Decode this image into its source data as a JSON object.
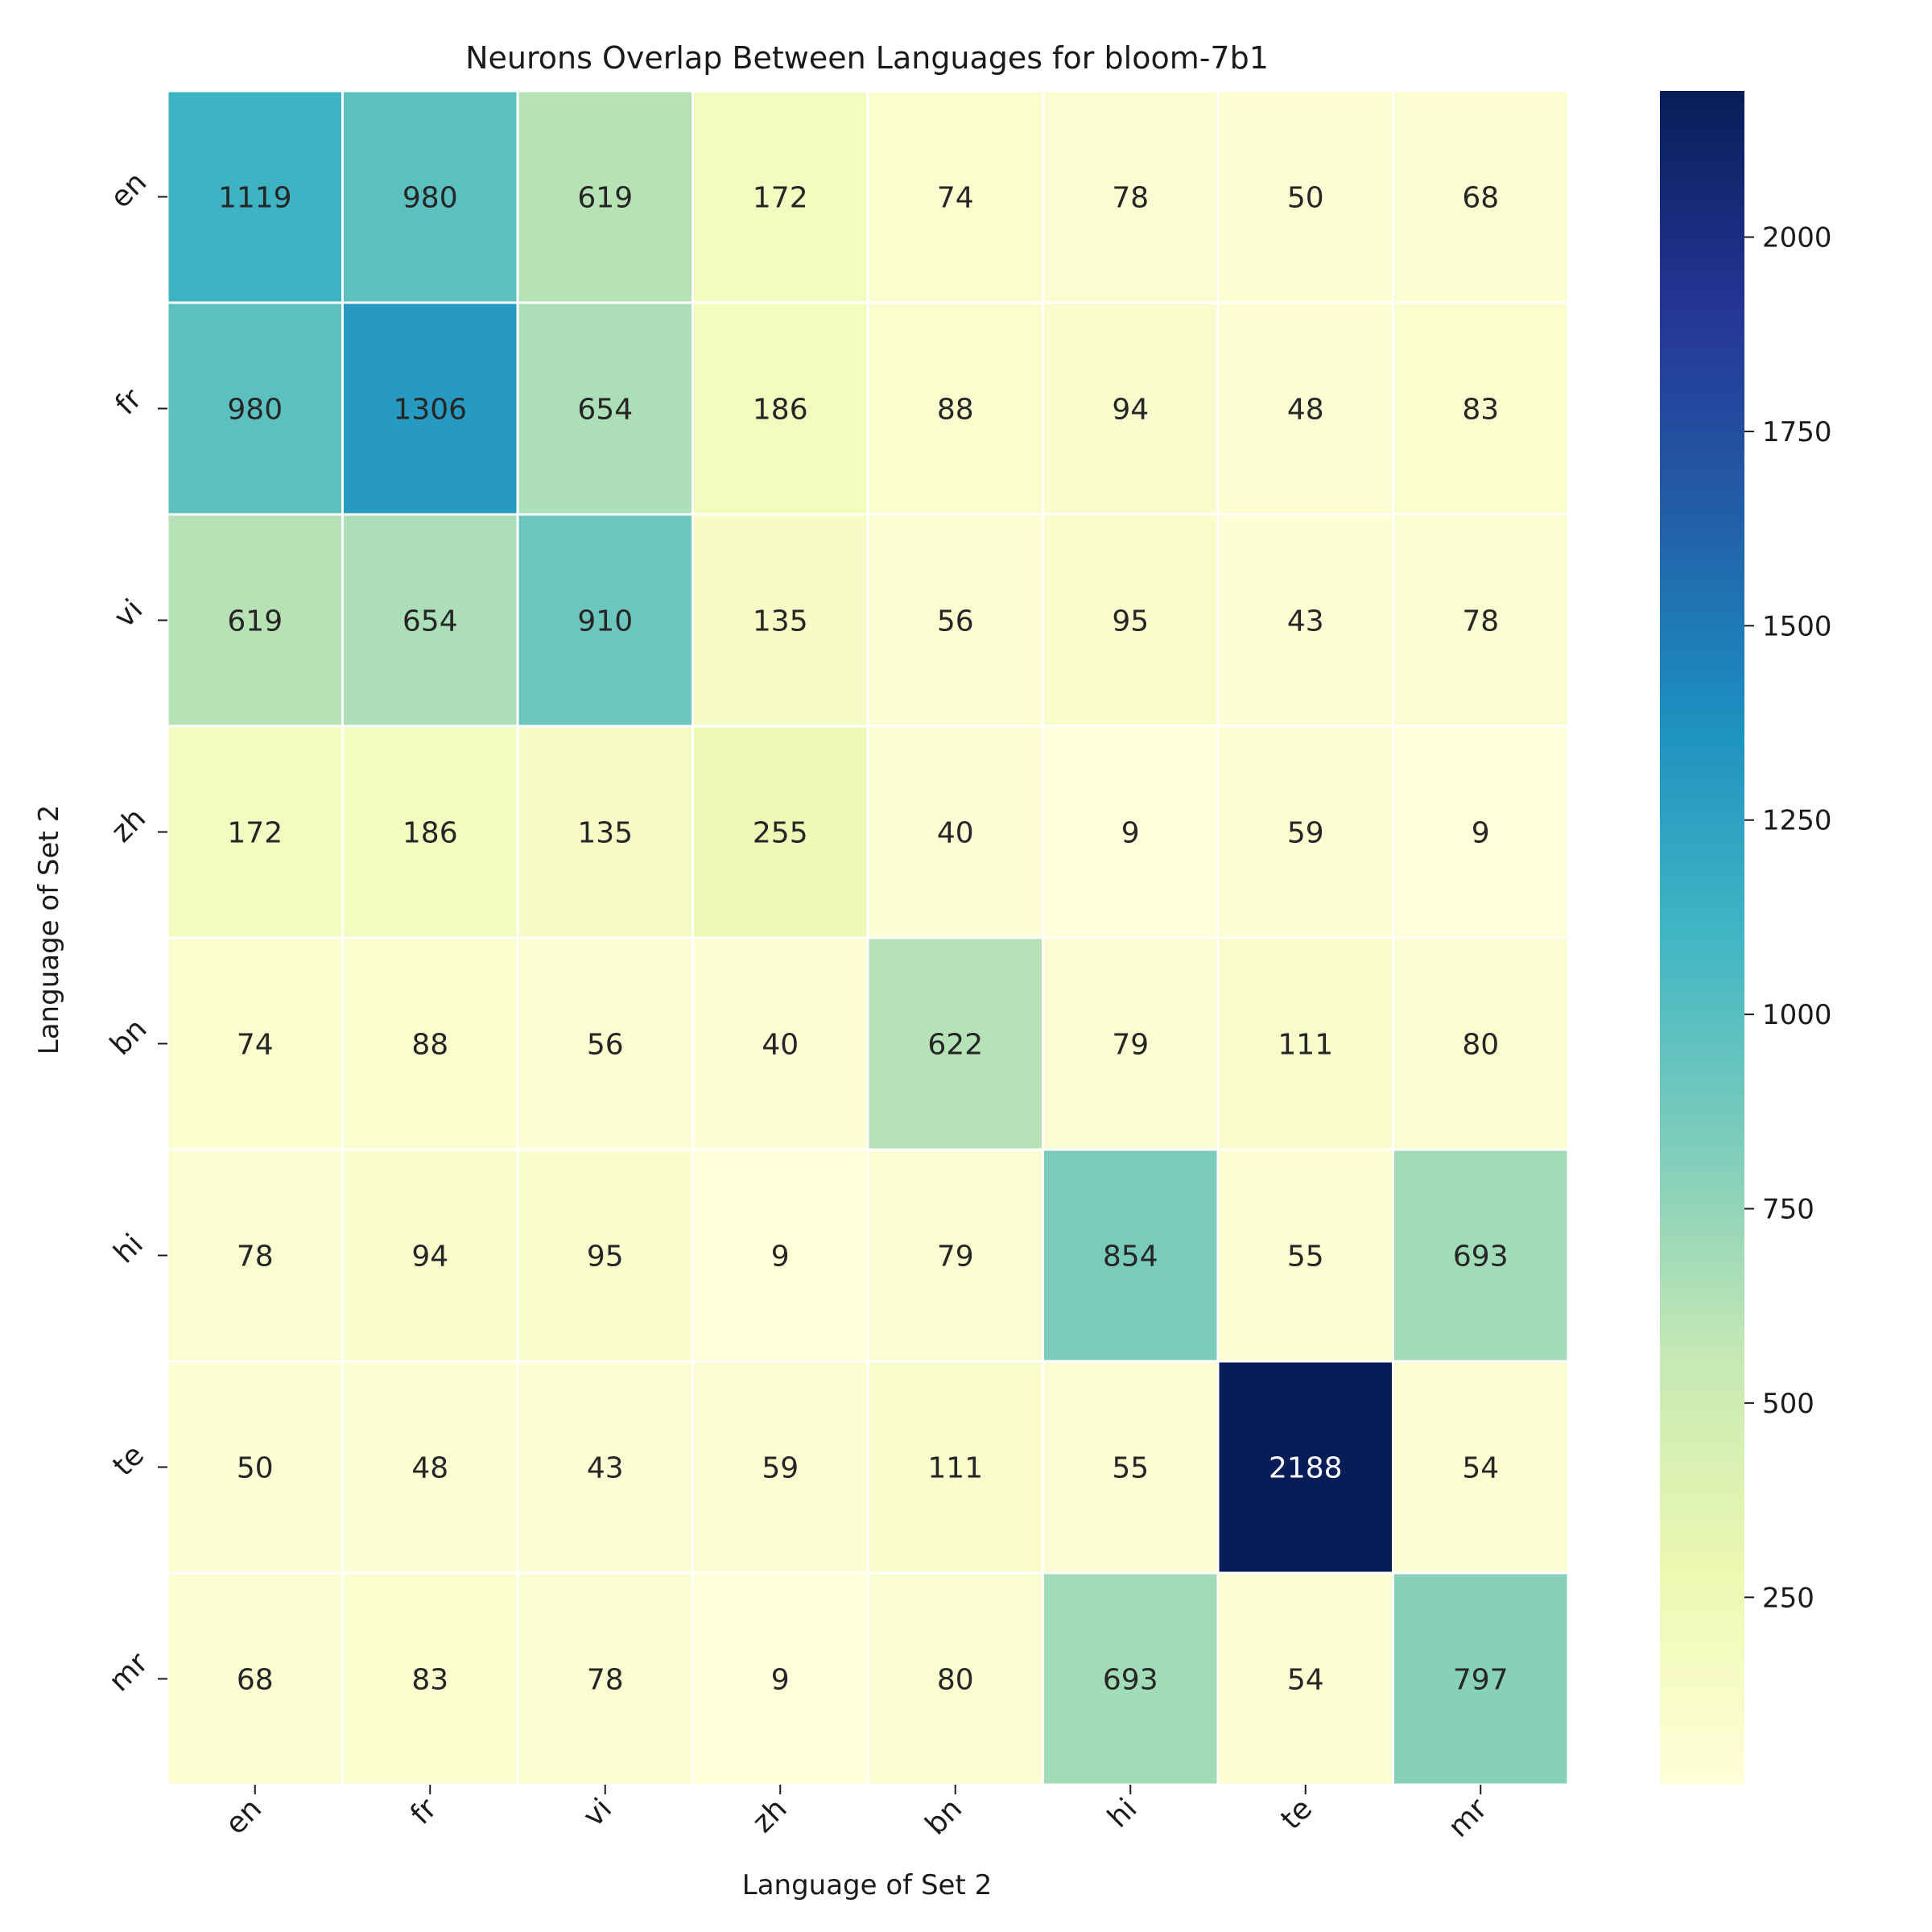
{
  "chart_data": {
    "type": "heatmap",
    "title": "Neurons Overlap Between Languages for bloom-7b1",
    "xlabel": "Language of Set 2",
    "ylabel": "Language of Set 2",
    "x_categories": [
      "en",
      "fr",
      "vi",
      "zh",
      "bn",
      "hi",
      "te",
      "mr"
    ],
    "y_categories": [
      "en",
      "fr",
      "vi",
      "zh",
      "bn",
      "hi",
      "te",
      "mr"
    ],
    "values": [
      [
        1119,
        980,
        619,
        172,
        74,
        78,
        50,
        68
      ],
      [
        980,
        1306,
        654,
        186,
        88,
        94,
        48,
        83
      ],
      [
        619,
        654,
        910,
        135,
        56,
        95,
        43,
        78
      ],
      [
        172,
        186,
        135,
        255,
        40,
        9,
        59,
        9
      ],
      [
        74,
        88,
        56,
        40,
        622,
        79,
        111,
        80
      ],
      [
        78,
        94,
        95,
        9,
        79,
        854,
        55,
        693
      ],
      [
        50,
        48,
        43,
        59,
        111,
        55,
        2188,
        54
      ],
      [
        68,
        83,
        78,
        9,
        80,
        693,
        54,
        797
      ]
    ],
    "colormap": "YlGnBu",
    "color_range": [
      9,
      2188
    ],
    "colorbar_ticks": [
      250,
      500,
      750,
      1000,
      1250,
      1500,
      1750,
      2000
    ],
    "colorbar_tick_labels": [
      "250",
      "500",
      "750",
      "1000",
      "1250",
      "1500",
      "1750",
      "2000"
    ],
    "grid_line_color": "#ffffff",
    "light_text_color": "#ffffff",
    "dark_text_color": "#262626"
  }
}
